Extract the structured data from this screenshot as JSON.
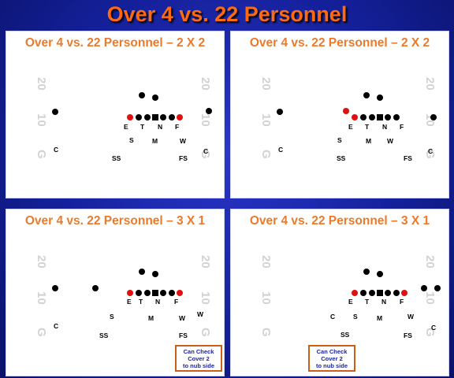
{
  "title": "Over 4 vs. 22 Personnel",
  "field_marks": {
    "twenty": "20",
    "ten": "10",
    "goal": "G"
  },
  "colors": {
    "title": "#ff6a10",
    "panel_title": "#ea7a2c",
    "defender": "#000000",
    "highlight": "#e01010",
    "note_border": "#c8601c",
    "note_text": "#1a24a8",
    "yard_numbers": "#d2d2d2"
  },
  "panels": [
    {
      "title": "Over 4 vs. 22 Personnel – 2 X 2",
      "labels": [
        "E",
        "T",
        "N",
        "F",
        "S",
        "M",
        "W",
        "C",
        "C",
        "SS",
        "FS"
      ],
      "note": ""
    },
    {
      "title": "Over 4 vs. 22 Personnel – 2 X 2",
      "labels": [
        "E",
        "T",
        "N",
        "F",
        "S",
        "M",
        "W",
        "C",
        "C",
        "SS",
        "FS"
      ],
      "note": ""
    },
    {
      "title": "Over 4 vs. 22 Personnel – 3 X 1",
      "labels": [
        "E",
        "T",
        "N",
        "F",
        "S",
        "M",
        "W",
        "W",
        "C",
        "SS",
        "FS"
      ],
      "note": "Can Check\nCover 2\nto nub side"
    },
    {
      "title": "Over 4 vs. 22 Personnel – 3 X 1",
      "labels": [
        "E",
        "T",
        "N",
        "F",
        "C",
        "S",
        "M",
        "W",
        "C",
        "SS",
        "FS"
      ],
      "note": "Can Check\nCover 2\nto nub side"
    }
  ]
}
